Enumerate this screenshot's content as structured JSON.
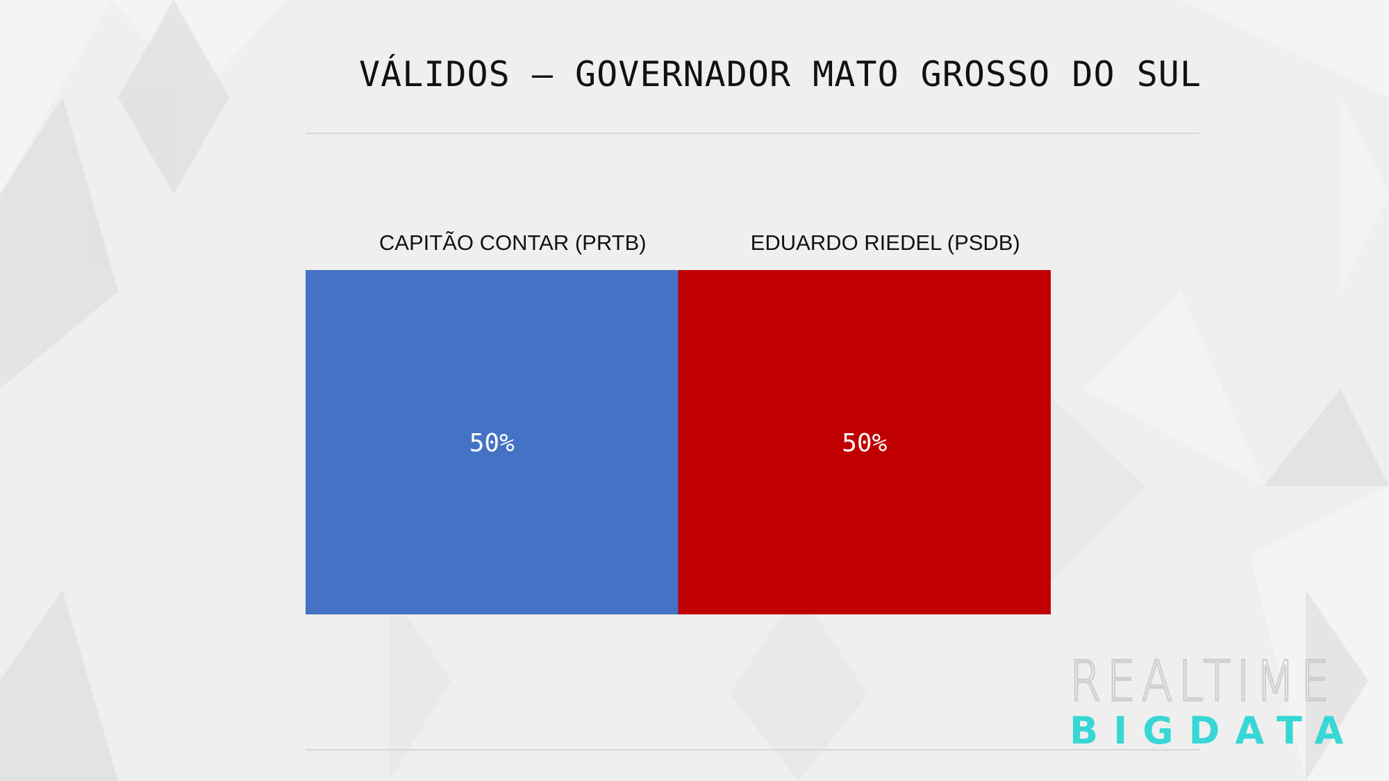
{
  "title": "VÁLIDOS – GOVERNADOR MATO GROSSO DO SUL",
  "logo": {
    "line1": "REALTIME",
    "line2": "BIGDATA"
  },
  "colors": {
    "background": "#efefef",
    "logo_accent": "#37d7d5"
  },
  "chart_data": {
    "type": "bar",
    "stacked": true,
    "orientation": "horizontal-100%",
    "categories": [
      "CAPITÃO CONTAR (PRTB)",
      "EDUARDO RIEDEL (PSDB)"
    ],
    "values": [
      50,
      50
    ],
    "value_labels": [
      "50%",
      "50%"
    ],
    "colors": [
      "#4472c4",
      "#c00000"
    ],
    "title": "VÁLIDOS – GOVERNADOR MATO GROSSO DO SUL",
    "xlabel": "",
    "ylabel": "",
    "grid": false,
    "legend": "top"
  }
}
